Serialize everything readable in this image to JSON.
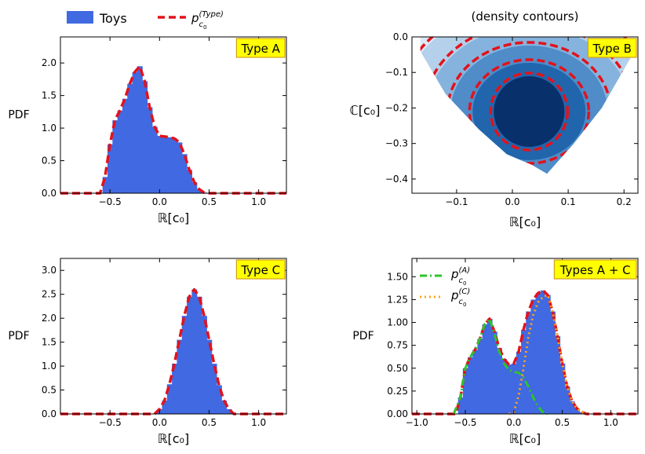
{
  "legend": {
    "position": "top-left",
    "entries": [
      {
        "label": "Toys",
        "kind": "bar",
        "color": "#4169e1"
      },
      {
        "label": "p",
        "sub": "c",
        "subsub": "0",
        "sup": "(Type)",
        "kind": "dashed-line",
        "color": "#e3121b"
      }
    ]
  },
  "colors": {
    "bar": "#4169e1",
    "fit": "#e3121b",
    "compA": "#2cc42c",
    "compC": "#ffa31a",
    "badge_fill": "#ffff00",
    "badge_border": "#d4a017"
  },
  "chart_data": [
    {
      "id": "A",
      "type": "bar",
      "badge": "Type A",
      "xlabel": "ℝ[c₀]",
      "ylabel": "PDF",
      "xlim": [
        -1.0,
        1.28
      ],
      "ylim": [
        0,
        2.4
      ],
      "xticks": [
        -0.5,
        0.0,
        0.5,
        1.0
      ],
      "xtick_labels": [
        "−0.5",
        "0.0",
        "0.5",
        "1.0"
      ],
      "yticks": [
        0.0,
        0.5,
        1.0,
        1.5,
        2.0
      ],
      "ytick_labels": [
        "0.0",
        "0.5",
        "1.0",
        "1.5",
        "2.0"
      ],
      "x": [
        -0.6,
        -0.55,
        -0.5,
        -0.45,
        -0.4,
        -0.35,
        -0.3,
        -0.25,
        -0.2,
        -0.15,
        -0.1,
        -0.05,
        0.0,
        0.05,
        0.1,
        0.15,
        0.2,
        0.25,
        0.3,
        0.35,
        0.4,
        0.45,
        0.5
      ],
      "values": [
        0.0,
        0.25,
        0.75,
        1.12,
        1.27,
        1.45,
        1.68,
        1.86,
        1.95,
        1.72,
        1.32,
        1.02,
        0.88,
        0.87,
        0.86,
        0.84,
        0.78,
        0.6,
        0.36,
        0.17,
        0.06,
        0.01,
        0.0
      ]
    },
    {
      "id": "B",
      "type": "heatmap",
      "badge": "Type B",
      "title": "(density contours)",
      "xlabel": "ℝ[c₀]",
      "ylabel": "ℂ[c₀]",
      "xlim": [
        -0.18,
        0.225
      ],
      "ylim": [
        -0.44,
        0.0
      ],
      "xticks": [
        -0.1,
        0.0,
        0.1,
        0.2
      ],
      "xtick_labels": [
        "−0.1",
        "0.0",
        "0.1",
        "0.2"
      ],
      "yticks": [
        -0.4,
        -0.3,
        -0.2,
        -0.1,
        0.0
      ],
      "ytick_labels": [
        "−0.4",
        "−0.3",
        "−0.2",
        "−0.1",
        "0.0"
      ],
      "contour_levels": 6
    },
    {
      "id": "C",
      "type": "bar",
      "badge": "Type C",
      "xlabel": "ℝ[c₀]",
      "ylabel": "PDF",
      "xlim": [
        -1.0,
        1.28
      ],
      "ylim": [
        0,
        3.25
      ],
      "xticks": [
        -0.5,
        0.0,
        0.5,
        1.0
      ],
      "xtick_labels": [
        "−0.5",
        "0.0",
        "0.5",
        "1.0"
      ],
      "yticks": [
        0.0,
        0.5,
        1.0,
        1.5,
        2.0,
        2.5,
        3.0
      ],
      "ytick_labels": [
        "0.0",
        "0.5",
        "1.0",
        "1.5",
        "2.0",
        "2.5",
        "3.0"
      ],
      "x": [
        -0.05,
        0.0,
        0.05,
        0.1,
        0.15,
        0.2,
        0.25,
        0.3,
        0.35,
        0.4,
        0.45,
        0.5,
        0.55,
        0.6,
        0.65,
        0.7,
        0.75
      ],
      "values": [
        0.0,
        0.1,
        0.28,
        0.62,
        1.05,
        1.55,
        2.05,
        2.45,
        2.6,
        2.45,
        2.05,
        1.55,
        1.05,
        0.6,
        0.28,
        0.1,
        0.0
      ]
    },
    {
      "id": "AC",
      "type": "bar",
      "badge": "Types A + C",
      "xlabel": "ℝ[c₀]",
      "ylabel": "PDF",
      "xlim": [
        -1.05,
        1.28
      ],
      "ylim": [
        0,
        1.7
      ],
      "xticks": [
        -1.0,
        -0.5,
        0.0,
        0.5,
        1.0
      ],
      "xtick_labels": [
        "−1.0",
        "−0.5",
        "0.0",
        "0.5",
        "1.0"
      ],
      "yticks": [
        0.0,
        0.25,
        0.5,
        0.75,
        1.0,
        1.25,
        1.5
      ],
      "ytick_labels": [
        "0.00",
        "0.25",
        "0.50",
        "0.75",
        "1.00",
        "1.25",
        "1.50"
      ],
      "legend": [
        {
          "label": "p",
          "sub": "c",
          "subsub": "0",
          "sup": "(A)",
          "style": "dashdot",
          "color": "#2cc42c"
        },
        {
          "label": "p",
          "sub": "c",
          "subsub": "0",
          "sup": "(C)",
          "style": "dotted",
          "color": "#ffa31a"
        }
      ],
      "x": [
        -0.6,
        -0.55,
        -0.5,
        -0.45,
        -0.4,
        -0.35,
        -0.3,
        -0.25,
        -0.2,
        -0.15,
        -0.1,
        -0.05,
        0.0,
        0.05,
        0.1,
        0.15,
        0.2,
        0.25,
        0.3,
        0.35,
        0.4,
        0.45,
        0.5,
        0.55,
        0.6,
        0.65,
        0.7,
        0.75
      ],
      "values": [
        0.0,
        0.18,
        0.5,
        0.62,
        0.7,
        0.82,
        0.98,
        1.04,
        0.9,
        0.72,
        0.6,
        0.54,
        0.55,
        0.68,
        0.92,
        1.12,
        1.25,
        1.32,
        1.35,
        1.3,
        1.12,
        0.85,
        0.55,
        0.3,
        0.14,
        0.06,
        0.02,
        0.0
      ],
      "series": [
        {
          "x": [
            -0.62,
            -0.55,
            -0.5,
            -0.45,
            -0.4,
            -0.35,
            -0.3,
            -0.25,
            -0.2,
            -0.15,
            -0.1,
            -0.05,
            0.0,
            0.05,
            0.1,
            0.15,
            0.2,
            0.25,
            0.3,
            0.35
          ],
          "values": [
            0.0,
            0.18,
            0.5,
            0.62,
            0.7,
            0.82,
            0.98,
            1.04,
            0.88,
            0.68,
            0.55,
            0.48,
            0.46,
            0.45,
            0.4,
            0.3,
            0.18,
            0.08,
            0.02,
            0.0
          ]
        },
        {
          "x": [
            -0.05,
            0.0,
            0.05,
            0.1,
            0.15,
            0.2,
            0.25,
            0.3,
            0.35,
            0.4,
            0.45,
            0.5,
            0.55,
            0.6,
            0.65,
            0.7,
            0.75
          ],
          "values": [
            0.0,
            0.02,
            0.2,
            0.5,
            0.84,
            1.08,
            1.22,
            1.28,
            1.3,
            1.12,
            0.85,
            0.55,
            0.3,
            0.14,
            0.06,
            0.02,
            0.0
          ]
        }
      ]
    }
  ]
}
